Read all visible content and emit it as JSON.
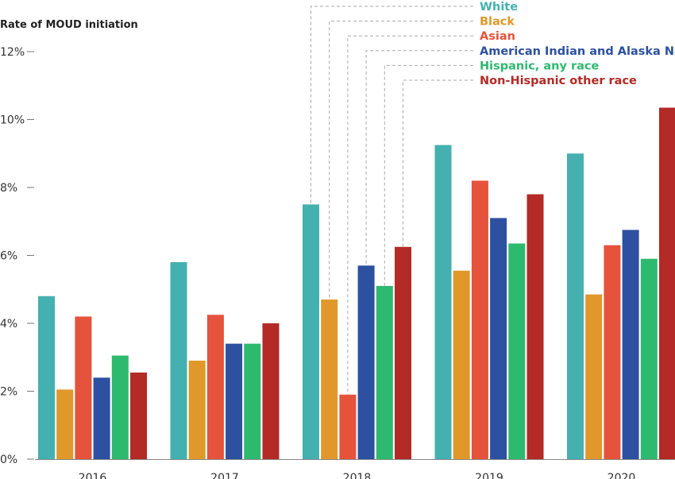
{
  "chart_data": {
    "type": "bar",
    "ylabel": "Rate of MOUD initiation",
    "ylim": [
      0,
      12
    ],
    "yticks": [
      "0%",
      "2%",
      "4%",
      "6%",
      "8%",
      "10%",
      "12%"
    ],
    "ytick_values": [
      0,
      2,
      4,
      6,
      8,
      10,
      12
    ],
    "categories": [
      "2016",
      "2017",
      "2018",
      "2019",
      "2020"
    ],
    "series": [
      {
        "name": "White",
        "color": "#45b0b0",
        "values": [
          4.8,
          5.8,
          7.5,
          9.25,
          9.0
        ]
      },
      {
        "name": "Black",
        "color": "#e0982a",
        "values": [
          2.05,
          2.9,
          4.7,
          5.55,
          4.85
        ]
      },
      {
        "name": "Asian",
        "color": "#e5533c",
        "values": [
          4.2,
          4.25,
          1.9,
          8.2,
          6.3
        ]
      },
      {
        "name": "American Indian and Alaska Native",
        "color": "#2d50a0",
        "values": [
          2.4,
          3.4,
          5.7,
          7.1,
          6.75
        ]
      },
      {
        "name": "Hispanic, any race",
        "color": "#2dba6e",
        "values": [
          3.05,
          3.4,
          5.1,
          6.35,
          5.9
        ]
      },
      {
        "name": "Non-Hispanic other race",
        "color": "#b32a26",
        "values": [
          2.55,
          4.0,
          6.25,
          7.8,
          10.35
        ]
      }
    ],
    "legend_placement": "top-right, with leader lines to the 2018 bars",
    "grid": false
  }
}
